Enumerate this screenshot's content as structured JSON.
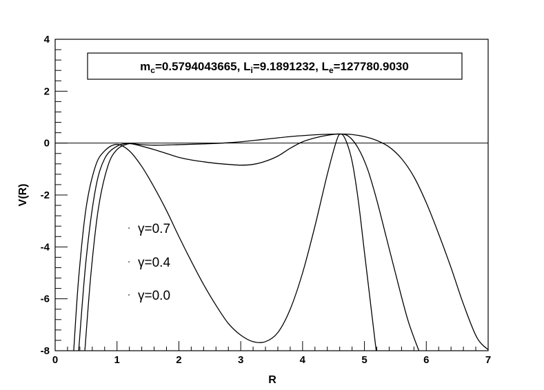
{
  "chart_data": {
    "type": "line",
    "title": "",
    "xlabel": "R",
    "ylabel": "V(R)",
    "xlim": [
      0,
      7
    ],
    "ylim": [
      -8,
      4
    ],
    "x_ticks": [
      "0",
      "1",
      "2",
      "3",
      "4",
      "5",
      "6",
      "7"
    ],
    "y_ticks": [
      "-8",
      "-6",
      "-4",
      "-2",
      "0",
      "2",
      "4"
    ],
    "grid": false,
    "legend_placement": "lower-left",
    "annotation": {
      "m_label": "m",
      "m_sub": "c",
      "m_value": "=0.5794043665, ",
      "li_label": "L",
      "li_sub": "i",
      "li_value": "=9.1891232, ",
      "le_label": "L",
      "le_sub": "e",
      "le_value": "=127780.9030"
    },
    "reference_line": {
      "y": 0
    },
    "series": [
      {
        "name": "γ=0.7",
        "x": [
          0.3,
          0.38,
          0.5,
          0.65,
          0.8,
          1.0,
          1.2,
          1.4,
          1.6,
          1.8,
          2.0,
          2.2,
          2.4,
          2.6,
          2.8,
          3.0,
          3.2,
          3.4,
          3.6,
          3.8,
          4.0,
          4.2,
          4.4,
          4.55,
          4.62,
          4.7,
          4.8,
          4.9,
          5.0,
          5.1,
          5.19
        ],
        "y": [
          -8.0,
          -5.2,
          -2.5,
          -0.9,
          -0.3,
          -0.05,
          -0.3,
          -0.9,
          -1.7,
          -2.6,
          -3.6,
          -4.55,
          -5.45,
          -6.25,
          -6.95,
          -7.4,
          -7.65,
          -7.65,
          -7.3,
          -6.4,
          -5.0,
          -3.2,
          -1.2,
          0.1,
          0.35,
          0.1,
          -0.7,
          -2.2,
          -4.2,
          -6.2,
          -8.0
        ]
      },
      {
        "name": "γ=0.4",
        "x": [
          0.38,
          0.5,
          0.65,
          0.8,
          1.0,
          1.2,
          1.4,
          1.6,
          1.8,
          2.0,
          2.2,
          2.4,
          2.6,
          2.8,
          3.0,
          3.2,
          3.4,
          3.6,
          3.8,
          4.0,
          4.2,
          4.4,
          4.6,
          4.75,
          4.9,
          5.05,
          5.2,
          5.35,
          5.5,
          5.7,
          5.88
        ],
        "y": [
          -8.0,
          -4.5,
          -1.8,
          -0.6,
          -0.12,
          -0.02,
          -0.12,
          -0.25,
          -0.4,
          -0.55,
          -0.65,
          -0.72,
          -0.78,
          -0.82,
          -0.85,
          -0.82,
          -0.7,
          -0.5,
          -0.2,
          0.05,
          0.2,
          0.3,
          0.35,
          0.25,
          -0.2,
          -1.0,
          -2.2,
          -3.6,
          -5.0,
          -6.8,
          -8.0
        ]
      },
      {
        "name": "γ=0.0",
        "x": [
          0.48,
          0.58,
          0.7,
          0.85,
          1.0,
          1.2,
          1.35,
          1.6,
          2.0,
          2.4,
          2.7,
          3.0,
          3.4,
          3.8,
          4.2,
          4.6,
          4.8,
          5.0,
          5.2,
          5.4,
          5.6,
          5.8,
          6.0,
          6.2,
          6.4,
          6.6,
          6.82,
          7.02
        ],
        "y": [
          -8.0,
          -5.0,
          -2.5,
          -0.9,
          -0.25,
          -0.02,
          -0.05,
          -0.08,
          -0.06,
          -0.03,
          0.0,
          0.05,
          0.15,
          0.25,
          0.32,
          0.35,
          0.33,
          0.25,
          0.1,
          -0.15,
          -0.6,
          -1.3,
          -2.3,
          -3.5,
          -4.8,
          -6.2,
          -7.5,
          -8.0
        ]
      }
    ]
  }
}
